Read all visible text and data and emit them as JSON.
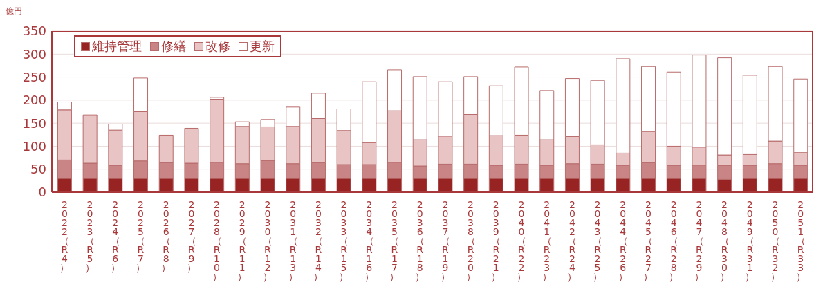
{
  "chart_data": {
    "type": "bar",
    "stacked": true,
    "ylabel": "億円",
    "categories": [
      "2022（R4）",
      "2023（R5）",
      "2024（R6）",
      "2025（R7）",
      "2026（R8）",
      "2027（R9）",
      "2028（R10）",
      "2029（R11）",
      "2030（R12）",
      "2031（R13）",
      "2032（R14）",
      "2033（R15）",
      "2034（R16）",
      "2035（R17）",
      "2036（R18）",
      "2037（R19）",
      "2038（R20）",
      "2039（R21）",
      "2040（R22）",
      "2041（R23）",
      "2042（R24）",
      "2043（R25）",
      "2044（R26）",
      "2045（R27）",
      "2046（R28）",
      "2047（R29）",
      "2048（R30）",
      "2049（R31）",
      "2050（R32）",
      "2051（R33）"
    ],
    "series": [
      {
        "name": "維持管理",
        "color": "#982323",
        "values": [
          30,
          30,
          30,
          30,
          30,
          30,
          30,
          30,
          30,
          30,
          30,
          30,
          30,
          30,
          30,
          30,
          30,
          30,
          30,
          30,
          30,
          30,
          30,
          30,
          30,
          30,
          28,
          30,
          30,
          30
        ]
      },
      {
        "name": "修繕",
        "color": "#c98585",
        "values": [
          40,
          33,
          28,
          38,
          34,
          33,
          35,
          32,
          39,
          32,
          34,
          30,
          30,
          35,
          27,
          31,
          31,
          28,
          31,
          28,
          32,
          31,
          28,
          34,
          28,
          29,
          30,
          28,
          32,
          28
        ]
      },
      {
        "name": "改修",
        "color": "#e8c4c4",
        "values": [
          109,
          104,
          77,
          107,
          59,
          75,
          137,
          81,
          73,
          81,
          96,
          74,
          48,
          112,
          57,
          61,
          108,
          65,
          63,
          56,
          59,
          42,
          27,
          68,
          42,
          39,
          23,
          24,
          49,
          28
        ]
      },
      {
        "name": "更新",
        "color": "#ffffff",
        "values": [
          17,
          1,
          13,
          73,
          1,
          1,
          4,
          10,
          16,
          42,
          55,
          47,
          132,
          89,
          137,
          118,
          82,
          108,
          148,
          107,
          126,
          140,
          205,
          141,
          161,
          200,
          211,
          172,
          162,
          160
        ]
      }
    ],
    "ylim": [
      0,
      350
    ],
    "yticks": [
      0,
      50,
      100,
      150,
      200,
      250,
      300,
      350
    ],
    "grid": "y",
    "legend": "top left"
  }
}
